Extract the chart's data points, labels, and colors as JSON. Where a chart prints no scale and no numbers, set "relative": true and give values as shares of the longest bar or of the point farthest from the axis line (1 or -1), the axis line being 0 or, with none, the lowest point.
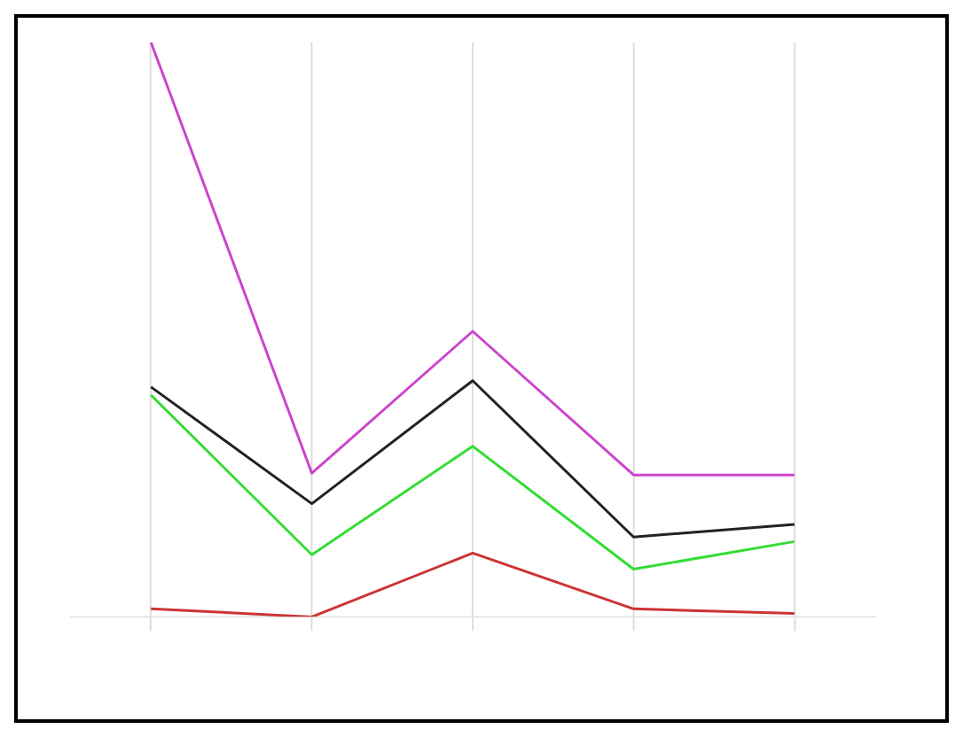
{
  "chart_data": {
    "type": "line",
    "relative": true,
    "grid": "x",
    "categories": [
      null,
      null,
      null,
      null,
      null
    ],
    "series": [
      {
        "color": "#cc3333",
        "values": [
          0.014,
          0,
          0.111,
          0.014,
          0.006
        ]
      },
      {
        "color": "#33dd33",
        "values": [
          0.386,
          0.108,
          0.297,
          0.083,
          0.131
        ]
      },
      {
        "color": "#222222",
        "values": [
          0.4,
          0.197,
          0.411,
          0.139,
          0.161
        ]
      },
      {
        "color": "#cc44cc",
        "values": [
          1,
          0.25,
          0.497,
          0.247,
          0.247
        ]
      }
    ]
  }
}
